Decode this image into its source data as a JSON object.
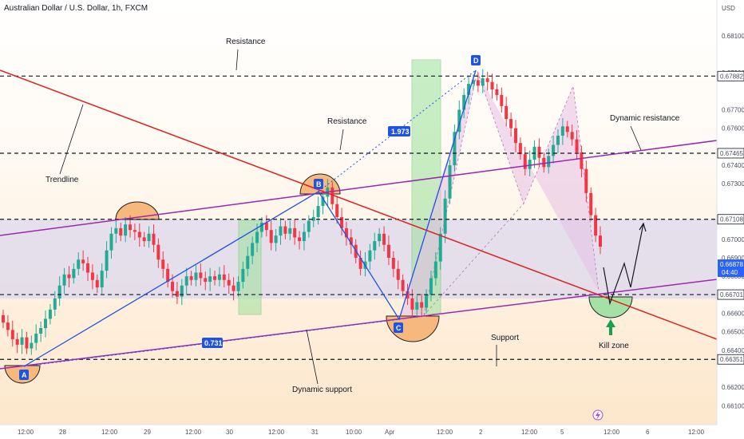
{
  "title": "Australian Dollar / U.S. Dollar, 1h, FXCM",
  "currency": "USD",
  "colors": {
    "up": "#22ab94",
    "down": "#f23645",
    "trendline": "#e0211f",
    "channel": "#9c27b0",
    "pattern_line": "#1e53e5",
    "resistance_band": "#dcd8ee",
    "green_zone": "#9be29b",
    "kill_zone": "#a5e0a5",
    "harmonic_fill": "#e6bfe3",
    "current_price_box": "#2962ff"
  },
  "price_axis": {
    "ticks": [
      "0.68100",
      "0.67900",
      "0.67700",
      "0.67600",
      "0.67400",
      "0.67300",
      "0.67000",
      "0.66900",
      "0.66800",
      "0.66600",
      "0.66500",
      "0.66400",
      "0.66200",
      "0.66100"
    ],
    "highlighted": [
      "0.67882",
      "0.67465",
      "0.67108",
      "0.66701",
      "0.66351"
    ],
    "current_price": "0.66878",
    "countdown": "04:40"
  },
  "time_axis": [
    "12:00",
    "28",
    "12:00",
    "29",
    "12:00",
    "30",
    "12:00",
    "31",
    "10:00",
    "Apr",
    "12:00",
    "2",
    "12:00",
    "5",
    "12:00",
    "6",
    "12:00"
  ],
  "annotations": {
    "resistance_top": "Resistance",
    "resistance_mid": "Resistance",
    "trendline": "Trendline",
    "dynamic_resistance": "Dynamic resistance",
    "dynamic_support": "Dynamic support",
    "support": "Support",
    "kill_zone": "Kill zone",
    "ratio_1": "1.973",
    "ratio_2": "0.731"
  },
  "points": {
    "a": "A",
    "b": "B",
    "c": "C",
    "d": "D"
  },
  "chart_data": {
    "type": "candlestick",
    "title": "Australian Dollar / U.S. Dollar, 1h, FXCM",
    "ylabel": "USD",
    "ylim": [
      0.6605,
      0.6825
    ],
    "horizontal_levels": [
      0.67882,
      0.67465,
      0.67108,
      0.66701,
      0.66351
    ],
    "current_price": 0.66878,
    "harmonic_points": [
      {
        "label": "A",
        "price": 0.6637
      },
      {
        "label": "B",
        "price": 0.6728
      },
      {
        "label": "C",
        "price": 0.6661
      },
      {
        "label": "D",
        "price": 0.6786
      }
    ],
    "fib_ratios": [
      "1.973",
      "0.731"
    ],
    "closes": [
      0.6655,
      0.6651,
      0.6646,
      0.6643,
      0.6647,
      0.6641,
      0.6644,
      0.6649,
      0.6652,
      0.6657,
      0.6662,
      0.6668,
      0.6675,
      0.6681,
      0.6679,
      0.6684,
      0.6689,
      0.6687,
      0.6682,
      0.6678,
      0.6674,
      0.6683,
      0.6694,
      0.6703,
      0.6706,
      0.6702,
      0.6708,
      0.6705,
      0.6704,
      0.6701,
      0.6699,
      0.6703,
      0.6697,
      0.6689,
      0.6684,
      0.6677,
      0.6672,
      0.6669,
      0.6675,
      0.668,
      0.6678,
      0.6682,
      0.6679,
      0.6677,
      0.668,
      0.6678,
      0.6681,
      0.6678,
      0.6675,
      0.6672,
      0.6677,
      0.6684,
      0.6691,
      0.6698,
      0.6704,
      0.6709,
      0.6705,
      0.6698,
      0.6702,
      0.6707,
      0.6703,
      0.6706,
      0.6701,
      0.6699,
      0.6704,
      0.671,
      0.6712,
      0.6718,
      0.6723,
      0.6728,
      0.6719,
      0.6712,
      0.6706,
      0.6701,
      0.6697,
      0.669,
      0.6684,
      0.6688,
      0.6694,
      0.6699,
      0.6703,
      0.6697,
      0.669,
      0.6684,
      0.6678,
      0.6672,
      0.6668,
      0.6662,
      0.6666,
      0.6663,
      0.667,
      0.6679,
      0.6688,
      0.6703,
      0.6722,
      0.674,
      0.6758,
      0.677,
      0.6778,
      0.6784,
      0.6786,
      0.6783,
      0.6787,
      0.6785,
      0.6781,
      0.6778,
      0.6772,
      0.6765,
      0.676,
      0.6752,
      0.6746,
      0.6738,
      0.6743,
      0.675,
      0.6744,
      0.6739,
      0.6745,
      0.6751,
      0.6756,
      0.6761,
      0.6758,
      0.6754,
      0.6747,
      0.6738,
      0.6725,
      0.6713,
      0.6702,
      0.6696
    ]
  }
}
